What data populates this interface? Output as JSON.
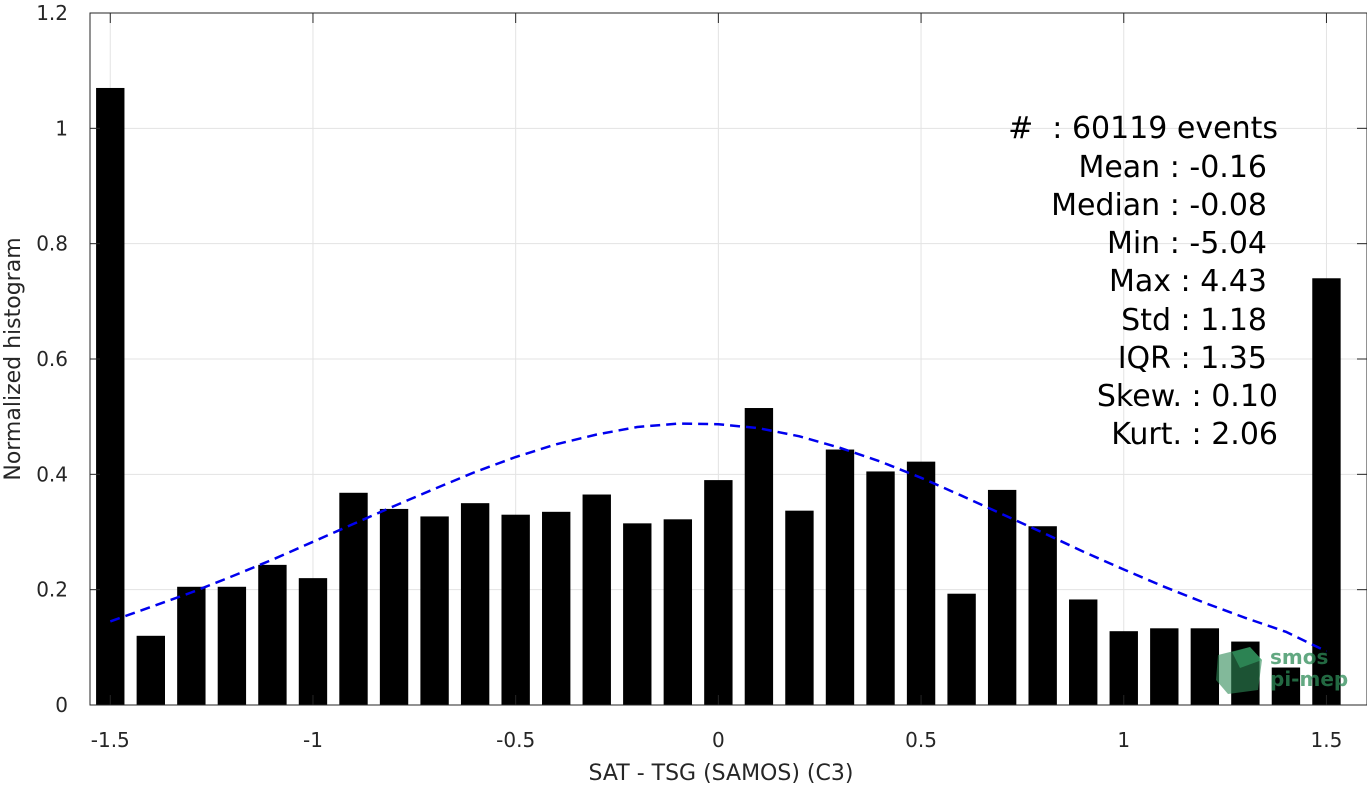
{
  "chart_data": {
    "type": "bar",
    "xlabel": "SAT - TSG (SAMOS) (C3)",
    "ylabel": "Normalized histogram",
    "xlim": [
      -1.55,
      1.6
    ],
    "ylim": [
      0,
      1.2
    ],
    "grid": true,
    "x_ticks": [
      -1.5,
      -1,
      -0.5,
      0,
      0.5,
      1,
      1.5
    ],
    "x_tick_labels": [
      "-1.5",
      "-1",
      "-0.5",
      "0",
      "0.5",
      "1",
      "1.5"
    ],
    "y_ticks": [
      0,
      0.2,
      0.4,
      0.6,
      0.8,
      1,
      1.2
    ],
    "y_tick_labels": [
      "0",
      "0.2",
      "0.4",
      "0.6",
      "0.8",
      "1",
      "1.2"
    ],
    "bar_width": 0.07,
    "bar_color": "#000000",
    "x": [
      -1.5,
      -1.4,
      -1.3,
      -1.2,
      -1.1,
      -1.0,
      -0.9,
      -0.8,
      -0.7,
      -0.6,
      -0.5,
      -0.4,
      -0.3,
      -0.2,
      -0.1,
      0.0,
      0.1,
      0.2,
      0.3,
      0.4,
      0.5,
      0.6,
      0.7,
      0.8,
      0.9,
      1.0,
      1.1,
      1.2,
      1.3,
      1.4,
      1.5
    ],
    "values": [
      1.07,
      0.12,
      0.205,
      0.205,
      0.243,
      0.22,
      0.368,
      0.34,
      0.327,
      0.35,
      0.33,
      0.335,
      0.365,
      0.315,
      0.322,
      0.39,
      0.515,
      0.337,
      0.443,
      0.405,
      0.422,
      0.193,
      0.373,
      0.31,
      0.183,
      0.128,
      0.133,
      0.133,
      0.11,
      0.065,
      0.74
    ],
    "fit": {
      "style": "dashed",
      "color": "#0000ee",
      "x": [
        -1.5,
        -1.4,
        -1.3,
        -1.2,
        -1.1,
        -1.0,
        -0.9,
        -0.8,
        -0.7,
        -0.6,
        -0.5,
        -0.4,
        -0.3,
        -0.2,
        -0.1,
        0.0,
        0.1,
        0.2,
        0.3,
        0.4,
        0.5,
        0.6,
        0.7,
        0.8,
        0.9,
        1.0,
        1.1,
        1.2,
        1.3,
        1.4,
        1.5
      ],
      "y": [
        0.145,
        0.17,
        0.195,
        0.223,
        0.252,
        0.283,
        0.314,
        0.345,
        0.375,
        0.404,
        0.43,
        0.452,
        0.469,
        0.482,
        0.488,
        0.487,
        0.48,
        0.466,
        0.446,
        0.422,
        0.394,
        0.363,
        0.331,
        0.299,
        0.266,
        0.235,
        0.205,
        0.177,
        0.151,
        0.127,
        0.093
      ]
    },
    "annotations": [
      "#  : 60119 events",
      "Mean : -0.16",
      "Median : -0.08",
      "Min : -5.04",
      "Max : 4.43",
      "Std : 1.18",
      "IQR : 1.35",
      "Skew. : 0.10",
      "Kurt. : 2.06"
    ]
  },
  "logo": {
    "line1": "smos",
    "line2": "pi-mep"
  }
}
